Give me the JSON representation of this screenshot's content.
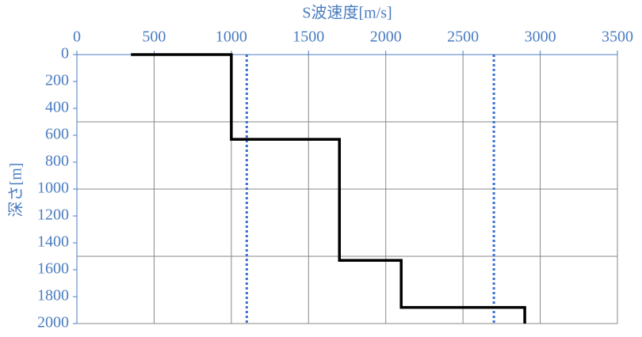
{
  "chart_data": {
    "type": "line",
    "title": "S波速度[m/s]",
    "y_label": "深さ[m]",
    "xlim": [
      0,
      3500
    ],
    "xticks": [
      0,
      500,
      1000,
      1500,
      2000,
      2500,
      3000,
      3500
    ],
    "ylim": [
      0,
      2000
    ],
    "yticks": [
      0,
      200,
      400,
      600,
      800,
      1000,
      1200,
      1400,
      1600,
      1800,
      2000
    ],
    "ygrid": [
      500,
      1000,
      1500,
      2000
    ],
    "y_inverted": true,
    "grid": true,
    "series": [
      {
        "color": "#000000",
        "style": "solid",
        "x": [
          350,
          1000,
          1000,
          1700,
          1700,
          2100,
          2100,
          2900,
          2900
        ],
        "values": [
          0,
          0,
          630,
          630,
          1530,
          1530,
          1880,
          1880,
          2000
        ]
      },
      {
        "color": "#3a6fd0",
        "style": "dotted",
        "x": [
          1100,
          1100
        ],
        "values": [
          0,
          2000
        ]
      },
      {
        "color": "#3a6fd0",
        "style": "dotted",
        "x": [
          2700,
          2700
        ],
        "values": [
          0,
          2000
        ]
      }
    ]
  }
}
